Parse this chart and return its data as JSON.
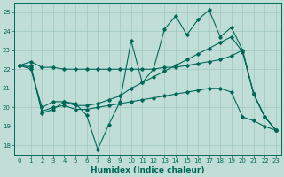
{
  "xlabel": "Humidex (Indice chaleur)",
  "bg_color": "#c0ddd8",
  "grid_color": "#a0c8c0",
  "line_color": "#006858",
  "xlim": [
    -0.5,
    23.5
  ],
  "ylim": [
    17.5,
    25.5
  ],
  "yticks": [
    18,
    19,
    20,
    21,
    22,
    23,
    24,
    25
  ],
  "xticks": [
    0,
    1,
    2,
    3,
    4,
    5,
    6,
    7,
    8,
    9,
    10,
    11,
    12,
    13,
    14,
    15,
    16,
    17,
    18,
    19,
    20,
    21,
    22,
    23
  ],
  "series": [
    [
      22.2,
      22.4,
      22.1,
      22.1,
      22.0,
      22.0,
      22.0,
      22.0,
      22.0,
      22.0,
      22.0,
      22.0,
      22.0,
      22.1,
      22.1,
      22.2,
      22.3,
      22.4,
      22.5,
      22.7,
      23.0,
      20.7,
      19.5,
      18.8
    ],
    [
      22.2,
      22.2,
      19.7,
      19.9,
      20.3,
      20.2,
      19.6,
      17.8,
      19.1,
      20.3,
      23.5,
      21.3,
      22.0,
      24.1,
      24.8,
      23.8,
      24.6,
      25.1,
      23.7,
      24.2,
      23.0,
      20.7,
      19.5,
      18.8
    ],
    [
      22.2,
      22.0,
      20.0,
      20.3,
      20.3,
      20.1,
      20.1,
      20.2,
      20.4,
      20.6,
      21.0,
      21.3,
      21.6,
      21.9,
      22.2,
      22.5,
      22.8,
      23.1,
      23.4,
      23.7,
      22.9,
      20.7,
      19.5,
      18.8
    ],
    [
      22.2,
      22.1,
      19.8,
      20.0,
      20.1,
      19.9,
      19.9,
      20.0,
      20.1,
      20.2,
      20.3,
      20.4,
      20.5,
      20.6,
      20.7,
      20.8,
      20.9,
      21.0,
      21.0,
      20.8,
      19.5,
      19.3,
      19.0,
      18.8
    ]
  ]
}
